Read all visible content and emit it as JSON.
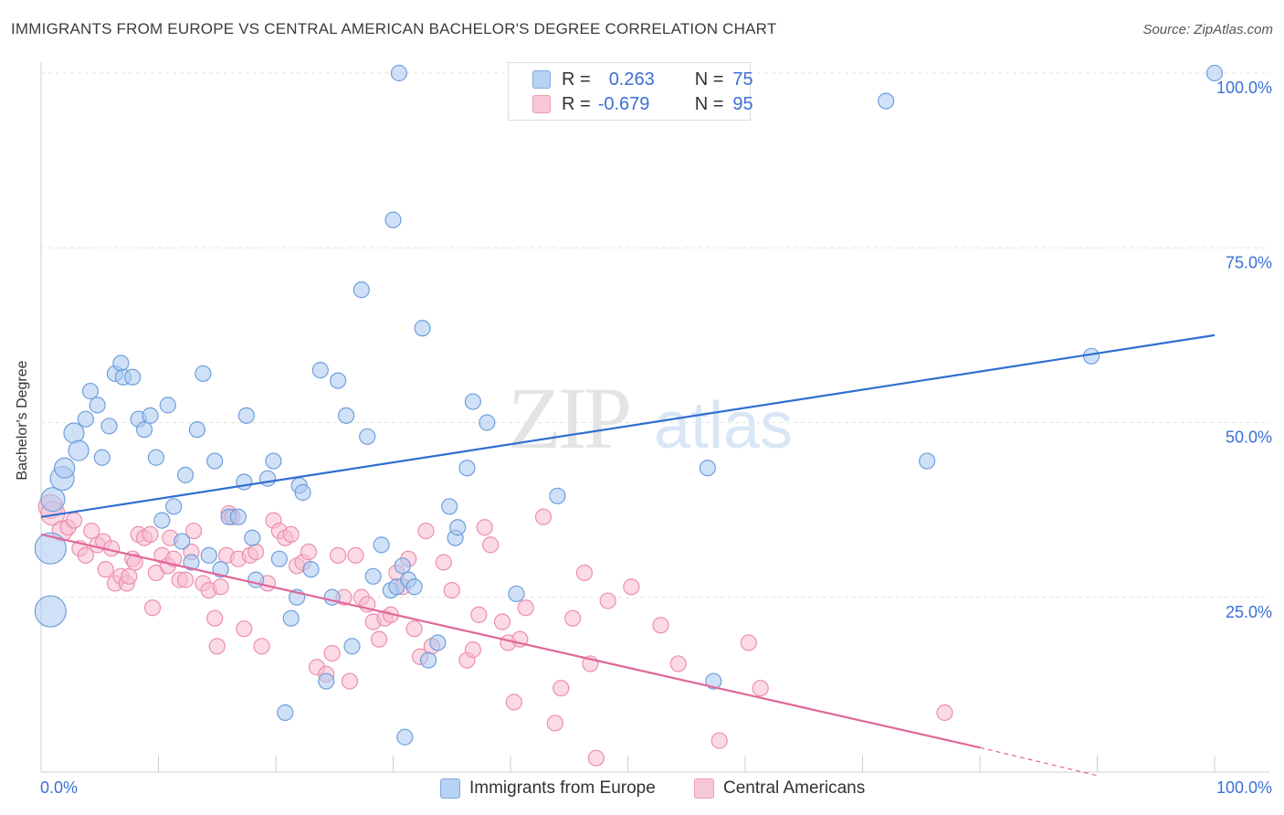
{
  "title": "IMMIGRANTS FROM EUROPE VS CENTRAL AMERICAN BACHELOR'S DEGREE CORRELATION CHART",
  "source": "Source: ZipAtlas.com",
  "watermark": {
    "zip": "ZIP",
    "atlas": "atlas"
  },
  "legend": {
    "series1": {
      "r_label": "R =",
      "r_value": "0.263",
      "n_label": "N =",
      "n_value": "75"
    },
    "series2": {
      "r_label": "R =",
      "r_value": "-0.679",
      "n_label": "N =",
      "n_value": "95"
    }
  },
  "bottom_legend": {
    "series1": "Immigrants from Europe",
    "series2": "Central Americans"
  },
  "axis": {
    "x_min_label": "0.0%",
    "x_max_label": "100.0%",
    "y_ticks": [
      "100.0%",
      "75.0%",
      "50.0%",
      "25.0%"
    ]
  },
  "colors": {
    "blue_fill": "#a9c8f0",
    "blue_stroke": "#6f9fdc",
    "blue_line": "#2f6fd0",
    "pink_fill": "#f7bcd0",
    "pink_stroke": "#ec8fae",
    "pink_line": "#e0679a",
    "text_blue": "#3b6fd6",
    "grid": "#e2e2e2"
  },
  "chart_data": {
    "type": "scatter",
    "ylabel": "Bachelor's Degree",
    "xlim": [
      0,
      100
    ],
    "ylim": [
      0,
      100
    ],
    "series": [
      {
        "name": "Immigrants from Europe",
        "color": "#a9c8f0",
        "trend": {
          "x": [
            0,
            100
          ],
          "y": [
            36.5,
            62.5
          ]
        },
        "points": [
          [
            0.8,
            23,
            3
          ],
          [
            0.8,
            32,
            3
          ],
          [
            1.0,
            39,
            2
          ],
          [
            1.8,
            42,
            2
          ],
          [
            2.0,
            43.5,
            1.5
          ],
          [
            2.8,
            48.5,
            1.5
          ],
          [
            3.2,
            46,
            1.5
          ],
          [
            3.8,
            50.5,
            1
          ],
          [
            4.2,
            54.5,
            1
          ],
          [
            4.8,
            52.5,
            1
          ],
          [
            5.2,
            45,
            1
          ],
          [
            5.8,
            49.5,
            1
          ],
          [
            6.3,
            57,
            1
          ],
          [
            6.8,
            58.5,
            1
          ],
          [
            7.0,
            56.5,
            1
          ],
          [
            7.8,
            56.5,
            1
          ],
          [
            8.3,
            50.5,
            1
          ],
          [
            8.8,
            49,
            1
          ],
          [
            9.3,
            51,
            1
          ],
          [
            9.8,
            45,
            1
          ],
          [
            10.3,
            36,
            1
          ],
          [
            10.8,
            52.5,
            1
          ],
          [
            11.3,
            38,
            1
          ],
          [
            12.0,
            33,
            1
          ],
          [
            12.3,
            42.5,
            1
          ],
          [
            12.8,
            30,
            1
          ],
          [
            13.3,
            49,
            1
          ],
          [
            13.8,
            57,
            1
          ],
          [
            14.3,
            31,
            1
          ],
          [
            14.8,
            44.5,
            1
          ],
          [
            15.3,
            29,
            1
          ],
          [
            16.0,
            36.5,
            1
          ],
          [
            16.8,
            36.5,
            1
          ],
          [
            17.3,
            41.5,
            1
          ],
          [
            17.5,
            51,
            1
          ],
          [
            18.0,
            33.5,
            1
          ],
          [
            18.3,
            27.5,
            1
          ],
          [
            19.3,
            42,
            1
          ],
          [
            19.8,
            44.5,
            1
          ],
          [
            20.3,
            30.5,
            1
          ],
          [
            20.8,
            8.5,
            1
          ],
          [
            21.3,
            22,
            1
          ],
          [
            21.8,
            25,
            1
          ],
          [
            22.0,
            41,
            1
          ],
          [
            22.3,
            40,
            1
          ],
          [
            23.0,
            29,
            1
          ],
          [
            23.8,
            57.5,
            1
          ],
          [
            24.3,
            13,
            1
          ],
          [
            24.8,
            25,
            1
          ],
          [
            25.3,
            56,
            1
          ],
          [
            26.0,
            51,
            1
          ],
          [
            26.5,
            18,
            1
          ],
          [
            27.3,
            69,
            1
          ],
          [
            27.8,
            48,
            1
          ],
          [
            28.3,
            28,
            1
          ],
          [
            29.0,
            32.5,
            1
          ],
          [
            29.8,
            26,
            1
          ],
          [
            30.0,
            79,
            1
          ],
          [
            30.3,
            26.5,
            1
          ],
          [
            30.8,
            29.5,
            1
          ],
          [
            31.0,
            5,
            1
          ],
          [
            31.3,
            27.5,
            1
          ],
          [
            30.5,
            100,
            1
          ],
          [
            31.8,
            26.5,
            1
          ],
          [
            32.5,
            63.5,
            1
          ],
          [
            33.0,
            16,
            1
          ],
          [
            33.8,
            18.5,
            1
          ],
          [
            34.8,
            38,
            1
          ],
          [
            35.3,
            33.5,
            1
          ],
          [
            35.5,
            35,
            1
          ],
          [
            36.3,
            43.5,
            1
          ],
          [
            36.8,
            53,
            1
          ],
          [
            38.0,
            50,
            1
          ],
          [
            40.5,
            25.5,
            1
          ],
          [
            44.0,
            39.5,
            1
          ],
          [
            56.8,
            43.5,
            1
          ],
          [
            57.3,
            13,
            1
          ],
          [
            72.0,
            96,
            1
          ],
          [
            75.5,
            44.5,
            1
          ],
          [
            89.5,
            59.5,
            1
          ],
          [
            100.0,
            100,
            1
          ]
        ]
      },
      {
        "name": "Central Americans",
        "color": "#f7bcd0",
        "trend": {
          "x": [
            0,
            80
          ],
          "y": [
            34,
            3.5
          ],
          "dash_x": [
            80,
            90
          ],
          "dash_y": [
            3.5,
            -0.5
          ]
        },
        "points": [
          [
            0.8,
            38,
            2
          ],
          [
            1.0,
            37,
            2
          ],
          [
            1.8,
            34.5,
            1.5
          ],
          [
            2.3,
            35,
            1
          ],
          [
            2.8,
            36,
            1
          ],
          [
            3.3,
            32,
            1
          ],
          [
            3.8,
            31,
            1
          ],
          [
            4.3,
            34.5,
            1
          ],
          [
            4.8,
            32.5,
            1
          ],
          [
            5.3,
            33,
            1
          ],
          [
            5.5,
            29,
            1
          ],
          [
            6.0,
            32,
            1
          ],
          [
            6.3,
            27,
            1
          ],
          [
            6.8,
            28,
            1
          ],
          [
            7.3,
            27,
            1
          ],
          [
            7.5,
            28,
            1
          ],
          [
            7.8,
            30.5,
            1
          ],
          [
            8.0,
            30,
            1
          ],
          [
            8.3,
            34,
            1
          ],
          [
            8.8,
            33.5,
            1
          ],
          [
            9.3,
            34,
            1
          ],
          [
            9.5,
            23.5,
            1
          ],
          [
            9.8,
            28.5,
            1
          ],
          [
            10.3,
            31,
            1
          ],
          [
            10.8,
            29.5,
            1
          ],
          [
            11.0,
            33.5,
            1
          ],
          [
            11.3,
            30.5,
            1
          ],
          [
            11.8,
            27.5,
            1
          ],
          [
            12.3,
            27.5,
            1
          ],
          [
            12.8,
            31.5,
            1
          ],
          [
            13.0,
            34.5,
            1
          ],
          [
            13.8,
            27,
            1
          ],
          [
            14.3,
            26,
            1
          ],
          [
            14.8,
            22,
            1
          ],
          [
            15.0,
            18,
            1
          ],
          [
            15.3,
            26.5,
            1
          ],
          [
            15.8,
            31,
            1
          ],
          [
            16.0,
            37,
            1
          ],
          [
            16.3,
            36.5,
            1
          ],
          [
            16.8,
            30.5,
            1
          ],
          [
            17.3,
            20.5,
            1
          ],
          [
            17.8,
            31,
            1
          ],
          [
            18.3,
            31.5,
            1
          ],
          [
            18.8,
            18,
            1
          ],
          [
            19.3,
            27,
            1
          ],
          [
            19.8,
            36,
            1
          ],
          [
            20.3,
            34.5,
            1
          ],
          [
            20.8,
            33.5,
            1
          ],
          [
            21.3,
            34,
            1
          ],
          [
            21.8,
            29.5,
            1
          ],
          [
            22.3,
            30,
            1
          ],
          [
            22.8,
            31.5,
            1
          ],
          [
            23.5,
            15,
            1
          ],
          [
            24.3,
            14,
            1
          ],
          [
            24.8,
            17,
            1
          ],
          [
            25.3,
            31,
            1
          ],
          [
            25.8,
            25,
            1
          ],
          [
            26.3,
            13,
            1
          ],
          [
            26.8,
            31,
            1
          ],
          [
            27.3,
            25,
            1
          ],
          [
            27.8,
            24,
            1
          ],
          [
            28.3,
            21.5,
            1
          ],
          [
            28.8,
            19,
            1
          ],
          [
            29.3,
            22,
            1
          ],
          [
            29.8,
            22.5,
            1
          ],
          [
            30.3,
            28.5,
            1
          ],
          [
            30.8,
            26.5,
            1
          ],
          [
            31.3,
            30.5,
            1
          ],
          [
            31.8,
            20.5,
            1
          ],
          [
            32.3,
            16.5,
            1
          ],
          [
            32.8,
            34.5,
            1
          ],
          [
            33.3,
            18,
            1
          ],
          [
            34.3,
            30,
            1
          ],
          [
            35.0,
            26,
            1
          ],
          [
            36.3,
            16,
            1
          ],
          [
            36.8,
            17.5,
            1
          ],
          [
            37.3,
            22.5,
            1
          ],
          [
            37.8,
            35,
            1
          ],
          [
            38.3,
            32.5,
            1
          ],
          [
            39.3,
            21.5,
            1
          ],
          [
            39.8,
            18.5,
            1
          ],
          [
            40.3,
            10,
            1
          ],
          [
            40.8,
            19,
            1
          ],
          [
            41.3,
            23.5,
            1
          ],
          [
            42.8,
            36.5,
            1
          ],
          [
            43.8,
            7,
            1
          ],
          [
            44.3,
            12,
            1
          ],
          [
            45.3,
            22,
            1
          ],
          [
            46.3,
            28.5,
            1
          ],
          [
            46.8,
            15.5,
            1
          ],
          [
            47.3,
            2,
            1
          ],
          [
            48.3,
            24.5,
            1
          ],
          [
            50.3,
            26.5,
            1
          ],
          [
            52.8,
            21,
            1
          ],
          [
            54.3,
            15.5,
            1
          ],
          [
            57.8,
            4.5,
            1
          ],
          [
            60.3,
            18.5,
            1
          ],
          [
            61.3,
            12,
            1
          ],
          [
            77.0,
            8.5,
            1
          ]
        ]
      }
    ]
  }
}
